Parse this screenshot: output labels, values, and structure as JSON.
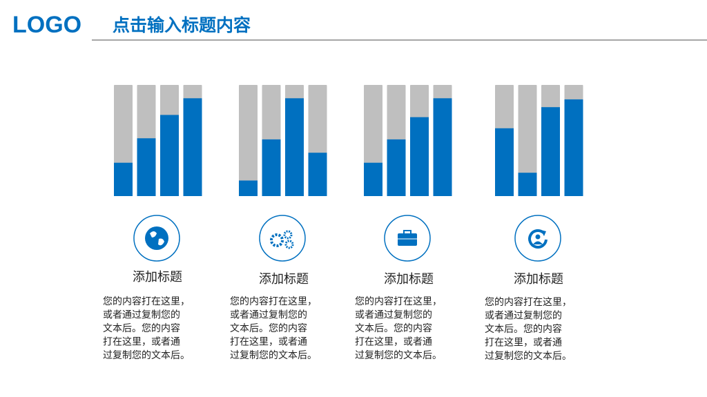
{
  "header": {
    "logo": "LOGO",
    "title": "点击输入标题内容"
  },
  "chart_data": [
    {
      "type": "bar",
      "values": [
        30,
        52,
        73,
        88
      ],
      "color": "#0070c0",
      "track_color": "#bfbfbf",
      "ylim": [
        0,
        100
      ]
    },
    {
      "type": "bar",
      "values": [
        14,
        51,
        88,
        39
      ],
      "color": "#0070c0",
      "track_color": "#bfbfbf",
      "ylim": [
        0,
        100
      ]
    },
    {
      "type": "bar",
      "values": [
        30,
        51,
        71,
        88
      ],
      "color": "#0070c0",
      "track_color": "#bfbfbf",
      "ylim": [
        0,
        100
      ]
    },
    {
      "type": "bar",
      "values": [
        61,
        21,
        80,
        87
      ],
      "color": "#0070c0",
      "track_color": "#bfbfbf",
      "ylim": [
        0,
        100
      ]
    }
  ],
  "cards": [
    {
      "title": "添加标题",
      "lines": [
        "您的内容打在这里，",
        "或者通过复制您的",
        "文本后。您的内容",
        "打在这里，或者通",
        "过复制您的文本后。"
      ]
    },
    {
      "title": "添加标题",
      "lines": [
        "您的内容打在这里，",
        "或者通过复制您的",
        "文本后。您的内容",
        "打在这里，或者通",
        "过复制您的文本后。"
      ]
    },
    {
      "title": "添加标题",
      "lines": [
        "您的内容打在这里，",
        "或者通过复制您的",
        "文本后。您的内容",
        "打在这里，或者通",
        "过复制您的文本后。"
      ]
    },
    {
      "title": "添加标题",
      "lines": [
        "您的内容打在这里，",
        "或者通过复制您的",
        "文本后。您的内容",
        "打在这里，或者通",
        "过复制您的文本后。"
      ]
    }
  ]
}
